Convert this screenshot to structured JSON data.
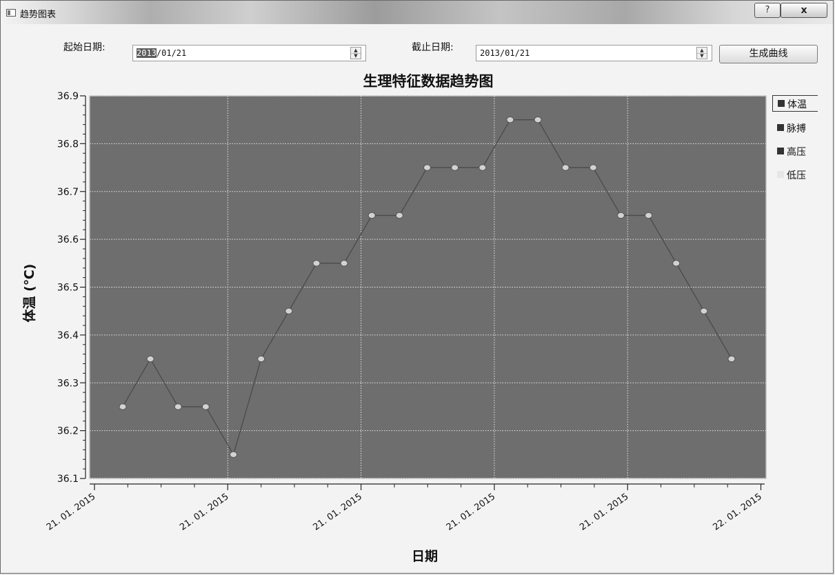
{
  "window": {
    "title": "趋势图表",
    "help_label": "?",
    "close_label": "x"
  },
  "controls": {
    "start_label": "起始日期:",
    "start_value_selected": "2013",
    "start_value_rest": "/01/21",
    "end_label": "截止日期:",
    "end_value": "2013/01/21",
    "generate_button": "生成曲线",
    "spin_up": "▲",
    "spin_down": "▼"
  },
  "legend": [
    {
      "label": "体温",
      "color": "#333333",
      "active": true
    },
    {
      "label": "脉搏",
      "color": "#333333",
      "active": false
    },
    {
      "label": "高压",
      "color": "#333333",
      "active": false
    },
    {
      "label": "低压",
      "color": "#e6e6e6",
      "active": false
    }
  ],
  "chart_data": {
    "type": "line",
    "title": "生理特征数据趋势图",
    "xlabel": "日期",
    "ylabel": "体温 (℃)",
    "ylim": [
      36.1,
      36.9
    ],
    "y_ticks": [
      "36.1",
      "36.2",
      "36.3",
      "36.4",
      "36.5",
      "36.6",
      "36.7",
      "36.8",
      "36.9"
    ],
    "x_tick_labels": [
      "21. 01. 2015",
      "21. 01. 2015",
      "21. 01. 2015",
      "21. 01. 2015",
      "21. 01. 2015",
      "22. 01. 2015"
    ],
    "grid": true,
    "legend_position": "right",
    "plot_background": "#6e6e6e",
    "series": [
      {
        "name": "体温",
        "color": "#4a4a4a",
        "values": [
          36.25,
          36.35,
          36.25,
          36.25,
          36.15,
          36.35,
          36.45,
          36.55,
          36.55,
          36.65,
          36.65,
          36.75,
          36.75,
          36.75,
          36.85,
          36.85,
          36.75,
          36.75,
          36.65,
          36.65,
          36.55,
          36.45,
          36.35
        ]
      }
    ]
  }
}
